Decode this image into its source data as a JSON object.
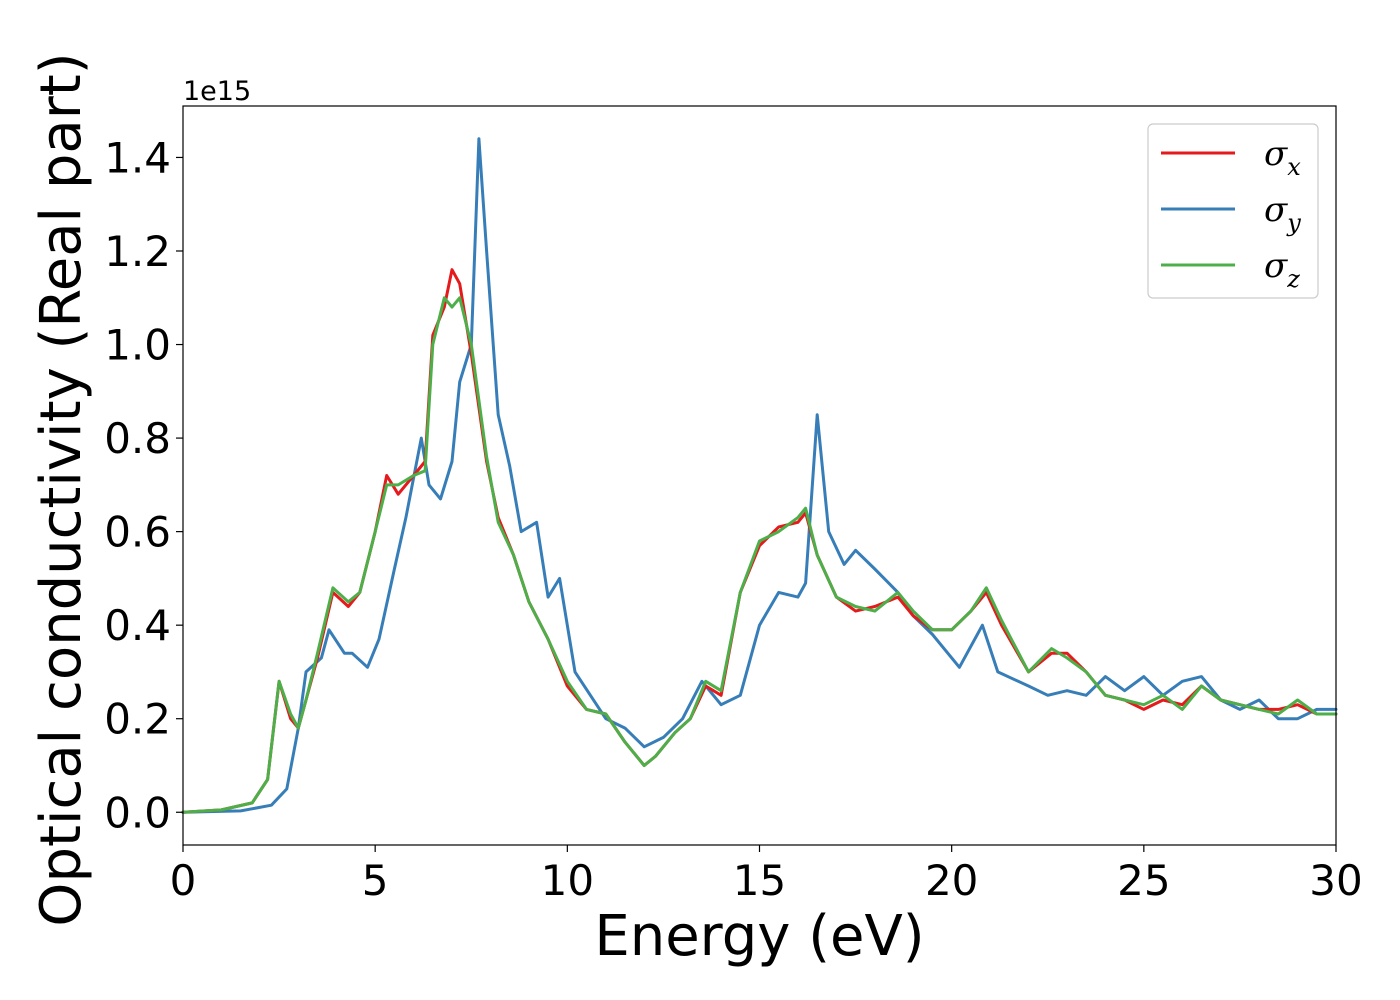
{
  "chart_data": {
    "type": "line",
    "xlabel": "Energy (eV)",
    "ylabel": "Optical conductivity (Real part)",
    "y_offset_label": "1e15",
    "xlim": [
      0,
      30
    ],
    "ylim": [
      -0.07,
      1.51
    ],
    "x_ticks": [
      0,
      5,
      10,
      15,
      20,
      25,
      30
    ],
    "x_tick_labels": [
      "0",
      "5",
      "10",
      "15",
      "20",
      "25",
      "30"
    ],
    "y_ticks": [
      0.0,
      0.2,
      0.4,
      0.6,
      0.8,
      1.0,
      1.2,
      1.4
    ],
    "y_tick_labels": [
      "0.0",
      "0.2",
      "0.4",
      "0.6",
      "0.8",
      "1.0",
      "1.2",
      "1.4"
    ],
    "grid": false,
    "legend_position": "top-right",
    "series": [
      {
        "name": "σx",
        "legend_symbol": "σ",
        "legend_subscript": "x",
        "color": "#e41a1c",
        "x": [
          0,
          1.0,
          1.8,
          2.2,
          2.5,
          2.8,
          3.0,
          3.2,
          3.5,
          3.9,
          4.3,
          4.6,
          5.0,
          5.3,
          5.6,
          6.0,
          6.3,
          6.5,
          6.8,
          7.0,
          7.2,
          7.5,
          7.9,
          8.2,
          8.6,
          9.0,
          9.5,
          10.0,
          10.5,
          11.0,
          11.5,
          12.0,
          12.3,
          12.8,
          13.2,
          13.6,
          14.0,
          14.5,
          15.0,
          15.5,
          16.0,
          16.2,
          16.5,
          17.0,
          17.5,
          18.0,
          18.6,
          19.0,
          19.5,
          20.0,
          20.5,
          20.9,
          21.3,
          22.0,
          22.6,
          23.0,
          23.5,
          24.0,
          24.5,
          25.0,
          25.5,
          26.0,
          26.5,
          27.0,
          27.5,
          28.0,
          28.5,
          29.0,
          29.5,
          30.0
        ],
        "y": [
          0.0,
          0.005,
          0.02,
          0.07,
          0.28,
          0.2,
          0.18,
          0.24,
          0.33,
          0.47,
          0.44,
          0.47,
          0.6,
          0.72,
          0.68,
          0.72,
          0.75,
          1.02,
          1.08,
          1.16,
          1.13,
          0.98,
          0.75,
          0.63,
          0.55,
          0.45,
          0.37,
          0.27,
          0.22,
          0.21,
          0.15,
          0.1,
          0.12,
          0.17,
          0.2,
          0.27,
          0.25,
          0.47,
          0.57,
          0.61,
          0.62,
          0.64,
          0.55,
          0.46,
          0.43,
          0.44,
          0.46,
          0.42,
          0.39,
          0.39,
          0.43,
          0.47,
          0.4,
          0.3,
          0.34,
          0.34,
          0.3,
          0.25,
          0.24,
          0.22,
          0.24,
          0.23,
          0.27,
          0.24,
          0.23,
          0.22,
          0.22,
          0.23,
          0.21,
          0.21
        ]
      },
      {
        "name": "σy",
        "legend_symbol": "σ",
        "legend_subscript": "y",
        "color": "#377eb8",
        "x": [
          0,
          1.5,
          2.3,
          2.7,
          3.0,
          3.2,
          3.6,
          3.8,
          4.2,
          4.4,
          4.8,
          5.1,
          5.5,
          5.8,
          6.2,
          6.4,
          6.7,
          7.0,
          7.2,
          7.5,
          7.7,
          7.9,
          8.2,
          8.5,
          8.8,
          9.2,
          9.5,
          9.8,
          10.2,
          10.6,
          11.0,
          11.5,
          12.0,
          12.5,
          13.0,
          13.5,
          14.0,
          14.5,
          15.0,
          15.5,
          16.0,
          16.2,
          16.5,
          16.8,
          17.2,
          17.5,
          18.0,
          18.6,
          19.0,
          19.5,
          20.2,
          20.8,
          21.2,
          22.0,
          22.5,
          23.0,
          23.5,
          24.0,
          24.5,
          25.0,
          25.5,
          26.0,
          26.5,
          27.0,
          27.5,
          28.0,
          28.5,
          29.0,
          29.5,
          30.0
        ],
        "y": [
          0.0,
          0.003,
          0.015,
          0.05,
          0.18,
          0.3,
          0.33,
          0.39,
          0.34,
          0.34,
          0.31,
          0.37,
          0.52,
          0.63,
          0.8,
          0.7,
          0.67,
          0.75,
          0.92,
          1.0,
          1.44,
          1.2,
          0.85,
          0.74,
          0.6,
          0.62,
          0.46,
          0.5,
          0.3,
          0.25,
          0.2,
          0.18,
          0.14,
          0.16,
          0.2,
          0.28,
          0.23,
          0.25,
          0.4,
          0.47,
          0.46,
          0.49,
          0.85,
          0.6,
          0.53,
          0.56,
          0.52,
          0.47,
          0.42,
          0.38,
          0.31,
          0.4,
          0.3,
          0.27,
          0.25,
          0.26,
          0.25,
          0.29,
          0.26,
          0.29,
          0.25,
          0.28,
          0.29,
          0.24,
          0.22,
          0.24,
          0.2,
          0.2,
          0.22,
          0.22
        ]
      },
      {
        "name": "σz",
        "legend_symbol": "σ",
        "legend_subscript": "z",
        "color": "#4daf4a",
        "x": [
          0,
          1.0,
          1.8,
          2.2,
          2.5,
          2.8,
          3.0,
          3.2,
          3.5,
          3.9,
          4.3,
          4.6,
          5.0,
          5.3,
          5.6,
          6.0,
          6.3,
          6.5,
          6.8,
          7.0,
          7.2,
          7.5,
          7.9,
          8.2,
          8.6,
          9.0,
          9.5,
          10.0,
          10.5,
          11.0,
          11.5,
          12.0,
          12.3,
          12.8,
          13.2,
          13.6,
          14.0,
          14.5,
          15.0,
          15.5,
          16.0,
          16.2,
          16.5,
          17.0,
          17.5,
          18.0,
          18.6,
          19.0,
          19.5,
          20.0,
          20.5,
          20.9,
          21.3,
          22.0,
          22.6,
          23.0,
          23.5,
          24.0,
          24.5,
          25.0,
          25.5,
          26.0,
          26.5,
          27.0,
          27.5,
          28.0,
          28.5,
          29.0,
          29.5,
          30.0
        ],
        "y": [
          0.0,
          0.005,
          0.02,
          0.07,
          0.28,
          0.21,
          0.18,
          0.24,
          0.34,
          0.48,
          0.45,
          0.47,
          0.6,
          0.7,
          0.7,
          0.72,
          0.73,
          1.0,
          1.1,
          1.08,
          1.1,
          1.0,
          0.76,
          0.62,
          0.55,
          0.45,
          0.37,
          0.28,
          0.22,
          0.21,
          0.15,
          0.1,
          0.12,
          0.17,
          0.2,
          0.28,
          0.26,
          0.47,
          0.58,
          0.6,
          0.63,
          0.65,
          0.55,
          0.46,
          0.44,
          0.43,
          0.47,
          0.43,
          0.39,
          0.39,
          0.43,
          0.48,
          0.41,
          0.3,
          0.35,
          0.33,
          0.3,
          0.25,
          0.24,
          0.23,
          0.25,
          0.22,
          0.27,
          0.24,
          0.23,
          0.22,
          0.21,
          0.24,
          0.21,
          0.21
        ]
      }
    ]
  }
}
